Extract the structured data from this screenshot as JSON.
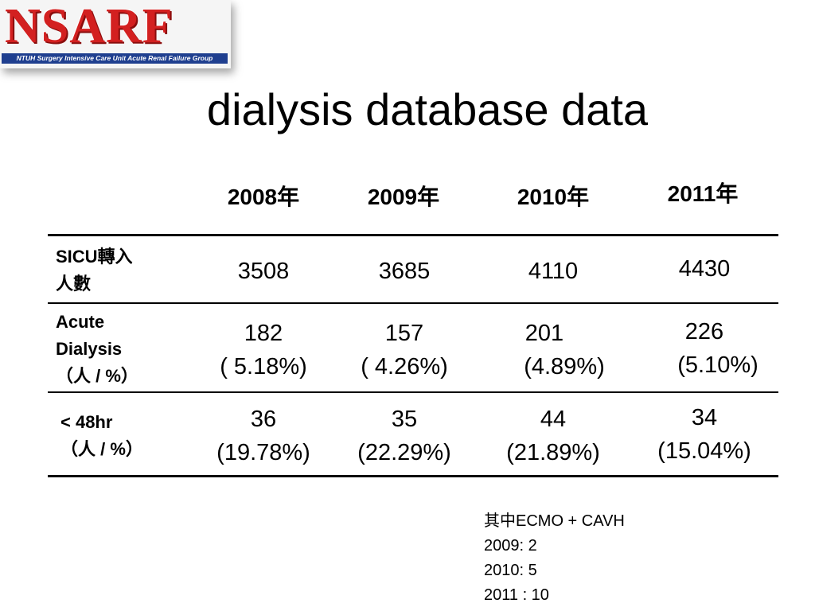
{
  "logo": {
    "text": "NSARF",
    "tagline": "NTUH Surgery Intensive Care Unit Acute Renal Failure Group"
  },
  "title": "dialysis database data",
  "table": {
    "years": [
      "2008年",
      "2009年",
      "2010年",
      "2011年"
    ],
    "rows": [
      {
        "label_lines": [
          "SICU轉入",
          "人數"
        ],
        "cells": [
          [
            "3508"
          ],
          [
            "3685"
          ],
          [
            "4110"
          ],
          [
            "4430"
          ]
        ]
      },
      {
        "label_lines": [
          "Acute",
          "Dialysis",
          "（人 / %）"
        ],
        "cells": [
          [
            "182",
            "( 5.18%)"
          ],
          [
            "157",
            "( 4.26%)"
          ],
          [
            "201",
            "(4.89%)"
          ],
          [
            "226",
            "(5.10%)"
          ]
        ]
      },
      {
        "label_lines": [
          "< 48hr",
          "（人 / %）"
        ],
        "cells": [
          [
            "36",
            "(19.78%)"
          ],
          [
            "35",
            "(22.29%)"
          ],
          [
            "44",
            "(21.89%)"
          ],
          [
            "34",
            "(15.04%)"
          ]
        ]
      }
    ]
  },
  "note": {
    "lines": [
      "其中ECMO + CAVH",
      "2009: 2",
      "2010: 5",
      "2011 : 10"
    ]
  }
}
